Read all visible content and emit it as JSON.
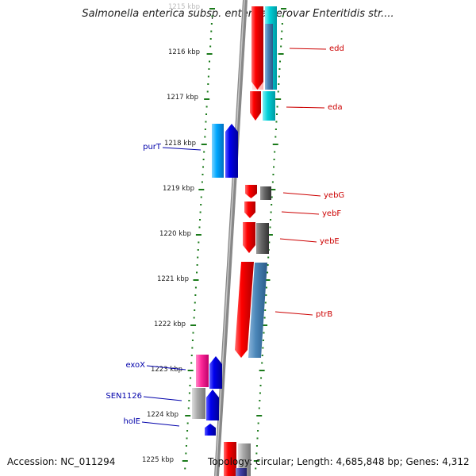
{
  "title": "Salmonella enterica subsp. enterica serovar Enteritidis str....",
  "footer": {
    "accession": "Accession: NC_011294",
    "summary": "Topology: circular; Length: 4,685,848 bp; Genes: 4,312"
  },
  "scale": {
    "unit": "kbp",
    "ticks": [
      "1215 kbp",
      "1216 kbp",
      "1217 kbp",
      "1218 kbp",
      "1219 kbp",
      "1220 kbp",
      "1221 kbp",
      "1222 kbp",
      "1223 kbp",
      "1224 kbp",
      "1225 kbp"
    ]
  },
  "genes": [
    {
      "label": "edd",
      "strand": "+",
      "color": "#cc0000"
    },
    {
      "label": "eda",
      "strand": "+",
      "color": "#cc0000"
    },
    {
      "label": "purT",
      "strand": "-",
      "color": "#0000aa"
    },
    {
      "label": "yebG",
      "strand": "+",
      "color": "#cc0000"
    },
    {
      "label": "yebF",
      "strand": "+",
      "color": "#cc0000"
    },
    {
      "label": "yebE",
      "strand": "+",
      "color": "#cc0000"
    },
    {
      "label": "ptrB",
      "strand": "+",
      "color": "#cc0000"
    },
    {
      "label": "exoX",
      "strand": "-",
      "color": "#0000aa"
    },
    {
      "label": "SEN1126",
      "strand": "-",
      "color": "#0000aa"
    },
    {
      "label": "holE",
      "strand": "-",
      "color": "#0000aa"
    }
  ],
  "colors": {
    "forward_cds": "#ff0000",
    "reverse_cds": "#0000ff",
    "forward_label": "#cc0000",
    "reverse_label": "#0000aa",
    "backbone": "#888888",
    "tick": "#1a7a1a",
    "teal": "#00d0d8",
    "steel": "#4a86b8",
    "gray": "#666666",
    "pink": "#ff2a9a",
    "silver": "#aaaaaa",
    "sky": "#00a8ff"
  }
}
